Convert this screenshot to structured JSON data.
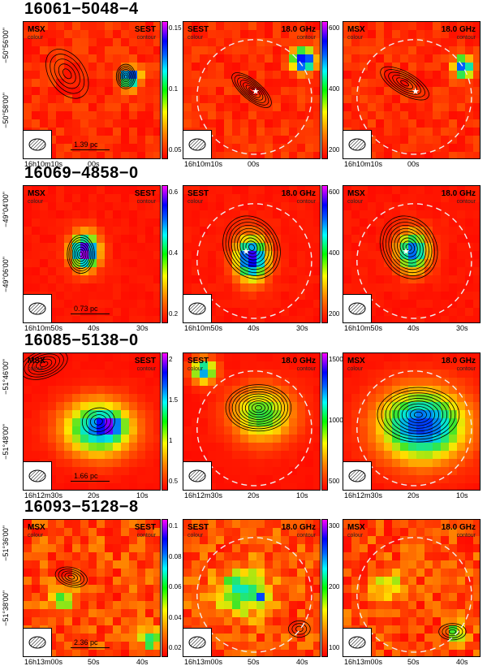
{
  "figure": {
    "rows": [
      {
        "title": "16061−5048−4",
        "panels": [
          {
            "left_label": "MSX",
            "left_sub": "colour",
            "right_label": "SEST",
            "right_sub": "contour"
          },
          {
            "left_label": "SEST",
            "left_sub": "colour",
            "right_label": "18.0 GHz",
            "right_sub": "contour"
          },
          {
            "left_label": "MSX",
            "left_sub": "colour",
            "right_label": "18.0 GHz",
            "right_sub": "contour"
          }
        ],
        "scale_label": "1.39 pc",
        "cbar1": [
          "0.15",
          "0.1",
          "0.05"
        ],
        "cbar2": [
          "600",
          "400",
          "200"
        ],
        "y_ticks": [
          "−50°56'00\"",
          "−50°58'00\""
        ],
        "x_ticks": [
          "16h10m10s",
          "00s"
        ]
      },
      {
        "title": "16069−4858−0",
        "panels": [
          {
            "left_label": "MSX",
            "left_sub": "colour",
            "right_label": "SEST",
            "right_sub": "contour"
          },
          {
            "left_label": "SEST",
            "left_sub": "colour",
            "right_label": "18.0 GHz",
            "right_sub": "contour"
          },
          {
            "left_label": "MSX",
            "left_sub": "colour",
            "right_label": "18.0 GHz",
            "right_sub": "contour"
          }
        ],
        "scale_label": "0.73 pc",
        "cbar1": [
          "0.6",
          "0.4",
          "0.2"
        ],
        "cbar2": [
          "600",
          "400",
          "200"
        ],
        "y_ticks": [
          "−49°04'00\"",
          "−49°06'00\""
        ],
        "x_ticks": [
          "16h10m50s",
          "40s",
          "30s"
        ]
      },
      {
        "title": "16085−5138−0",
        "panels": [
          {
            "left_label": "MSX",
            "left_sub": "colour",
            "right_label": "SEST",
            "right_sub": "contour"
          },
          {
            "left_label": "SEST",
            "left_sub": "colour",
            "right_label": "18.0 GHz",
            "right_sub": "contour"
          },
          {
            "left_label": "MSX",
            "left_sub": "colour",
            "right_label": "18.0 GHz",
            "right_sub": "contour"
          }
        ],
        "scale_label": "1.66 pc",
        "cbar1": [
          "2",
          "1.5",
          "1",
          "0.5"
        ],
        "cbar2": [
          "1500",
          "1000",
          "500"
        ],
        "y_ticks": [
          "−51°46'00\"",
          "−51°48'00\""
        ],
        "x_ticks": [
          "16h12m30s",
          "20s",
          "10s"
        ]
      },
      {
        "title": "16093−5128−8",
        "panels": [
          {
            "left_label": "MSX",
            "left_sub": "colour",
            "right_label": "SEST",
            "right_sub": "contour"
          },
          {
            "left_label": "SEST",
            "left_sub": "colour",
            "right_label": "18.0 GHz",
            "right_sub": "contour"
          },
          {
            "left_label": "MSX",
            "left_sub": "colour",
            "right_label": "18.0 GHz",
            "right_sub": "contour"
          }
        ],
        "scale_label": "2.36 pc",
        "cbar1": [
          "0.1",
          "0.08",
          "0.06",
          "0.04",
          "0.02"
        ],
        "cbar2": [
          "300",
          "200",
          "100"
        ],
        "y_ticks": [
          "−51°36'00\"",
          "−51°38'00\""
        ],
        "x_ticks": [
          "16h13m00s",
          "50s",
          "40s"
        ]
      }
    ]
  }
}
